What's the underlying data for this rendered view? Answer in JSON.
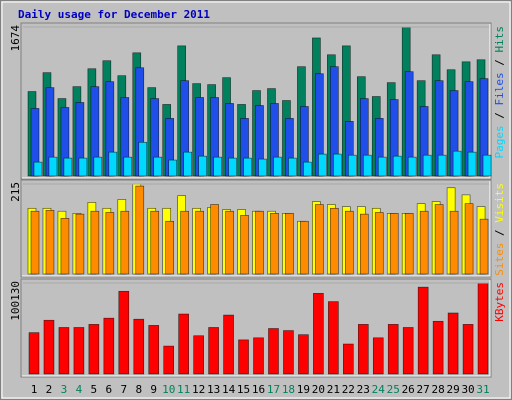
{
  "title": "Daily usage for December 2011",
  "legend_separator": " / ",
  "chart_data": [
    {
      "type": "bar",
      "ylim": [
        0,
        1674
      ],
      "yticks": [
        1674
      ],
      "series": [
        {
          "name": "Hits",
          "color": "#00805c",
          "values": [
            949,
            1161,
            870,
            1004,
            1205,
            1295,
            1127,
            1384,
            993,
            804,
            1462,
            1038,
            1027,
            1105,
            804,
            960,
            982,
            848,
            1228,
            1551,
            1362,
            1462,
            1116,
            893,
            1049,
            1674,
            1071,
            1362,
            1194,
            1283,
            1306
          ]
        },
        {
          "name": "Files",
          "color": "#1f4fe8",
          "values": [
            759,
            993,
            770,
            826,
            1004,
            1060,
            882,
            1216,
            870,
            647,
            1071,
            882,
            882,
            815,
            647,
            792,
            815,
            647,
            781,
            1149,
            1228,
            614,
            870,
            647,
            859,
            1172,
            781,
            1071,
            960,
            1060,
            1094
          ]
        },
        {
          "name": "Pages",
          "color": "#00d8ff",
          "values": [
            156,
            212,
            201,
            201,
            212,
            268,
            212,
            379,
            212,
            179,
            268,
            223,
            212,
            201,
            201,
            190,
            212,
            201,
            156,
            246,
            246,
            234,
            234,
            212,
            223,
            212,
            234,
            234,
            279,
            268,
            234
          ]
        }
      ]
    },
    {
      "type": "bar",
      "ylim": [
        0,
        215
      ],
      "yticks": [
        215
      ],
      "series": [
        {
          "name": "Visits",
          "color": "#ffff00",
          "values": [
            157,
            157,
            150,
            145,
            171,
            157,
            178,
            215,
            157,
            157,
            187,
            157,
            159,
            154,
            154,
            150,
            150,
            145,
            126,
            173,
            166,
            161,
            161,
            157,
            145,
            145,
            168,
            173,
            206,
            189,
            161
          ]
        },
        {
          "name": "Sites",
          "color": "#ff8c00",
          "values": [
            150,
            152,
            133,
            143,
            150,
            147,
            150,
            210,
            150,
            126,
            150,
            150,
            166,
            150,
            140,
            150,
            145,
            145,
            126,
            166,
            157,
            150,
            143,
            147,
            145,
            145,
            150,
            166,
            150,
            168,
            131
          ]
        }
      ]
    },
    {
      "type": "bar",
      "ylim": [
        0,
        100130
      ],
      "yticks": [
        100130
      ],
      "categories": [
        "1",
        "2",
        "3",
        "4",
        "5",
        "6",
        "7",
        "8",
        "9",
        "10",
        "11",
        "12",
        "13",
        "14",
        "15",
        "16",
        "17",
        "18",
        "19",
        "20",
        "21",
        "22",
        "23",
        "24",
        "25",
        "26",
        "27",
        "28",
        "29",
        "30",
        "31"
      ],
      "category_colors": [
        "#000",
        "#000",
        "#00805c",
        "#00805c",
        "#000",
        "#000",
        "#000",
        "#000",
        "#000",
        "#00805c",
        "#00805c",
        "#000",
        "#000",
        "#000",
        "#000",
        "#000",
        "#00805c",
        "#00805c",
        "#000",
        "#000",
        "#000",
        "#000",
        "#000",
        "#00805c",
        "#00805c",
        "#000",
        "#000",
        "#000",
        "#000",
        "#000",
        "#00805c"
      ],
      "series": [
        {
          "name": "KBytes",
          "color": "#ff0000",
          "values": [
            45512,
            59166,
            51202,
            51202,
            54615,
            61443,
            91026,
            60305,
            53478,
            30721,
            65993,
            42100,
            51202,
            64855,
            37548,
            39824,
            50064,
            47789,
            43237,
            88750,
            79648,
            32997,
            54615,
            39824,
            54615,
            51202,
            95577,
            58029,
            67131,
            54615,
            100130
          ]
        }
      ]
    }
  ]
}
